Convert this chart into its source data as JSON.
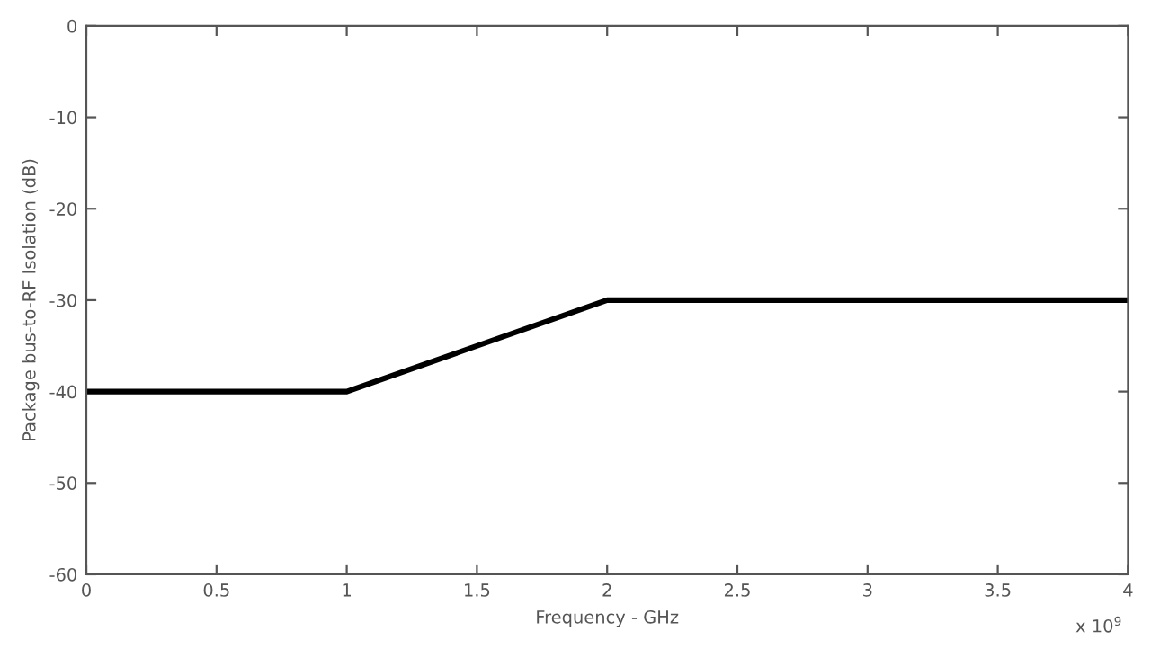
{
  "chart_data": {
    "type": "line",
    "xlabel": "Frequency - GHz",
    "ylabel": "Package bus-to-RF Isolation (dB)",
    "x": [
      0,
      1,
      2,
      4
    ],
    "series": [
      {
        "color": "#000000",
        "values": [
          -40,
          -40,
          -30,
          -30
        ]
      }
    ],
    "xlim": [
      0,
      4
    ],
    "xticks": [
      0,
      0.5,
      1,
      1.5,
      2,
      2.5,
      3,
      3.5,
      4
    ],
    "ylim": [
      -60,
      0
    ],
    "yticks": [
      -60,
      -50,
      -40,
      -30,
      -20,
      -10,
      0
    ],
    "annotations": [
      "x 10$^{9}$"
    ],
    "grid": false,
    "legend": false,
    "marker": "none",
    "line_style": "solid"
  }
}
